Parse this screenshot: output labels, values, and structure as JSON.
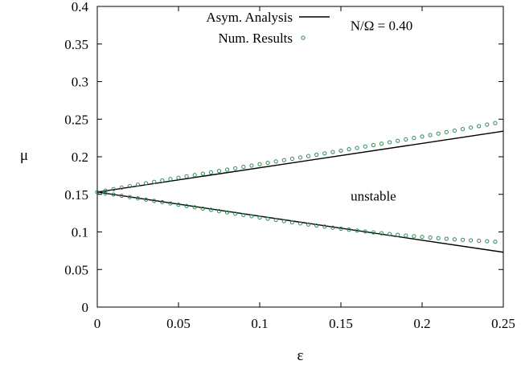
{
  "chart_data": {
    "type": "line",
    "xlabel": "ε",
    "ylabel": "μ",
    "xlim": [
      0,
      0.25
    ],
    "ylim": [
      0,
      0.4
    ],
    "x_ticks": [
      {
        "value": 0,
        "label": "0"
      },
      {
        "value": 0.05,
        "label": "0.05"
      },
      {
        "value": 0.1,
        "label": "0.1"
      },
      {
        "value": 0.15,
        "label": "0.15"
      },
      {
        "value": 0.2,
        "label": "0.2"
      },
      {
        "value": 0.25,
        "label": "0.25"
      }
    ],
    "y_ticks": [
      {
        "value": 0,
        "label": "0"
      },
      {
        "value": 0.05,
        "label": "0.05"
      },
      {
        "value": 0.1,
        "label": "0.1"
      },
      {
        "value": 0.15,
        "label": "0.15"
      },
      {
        "value": 0.2,
        "label": "0.2"
      },
      {
        "value": 0.25,
        "label": "0.25"
      },
      {
        "value": 0.3,
        "label": "0.3"
      },
      {
        "value": 0.35,
        "label": "0.35"
      },
      {
        "value": 0.4,
        "label": "0.4"
      }
    ],
    "grid": false,
    "legend_position": "top-left",
    "annotations": [
      {
        "text": "N/Ω = 0.40",
        "x": 0.175,
        "y": 0.375
      },
      {
        "text": "unstable",
        "x": 0.17,
        "y": 0.148
      }
    ],
    "series": [
      {
        "name": "Asym. Analysis",
        "style": "line",
        "color": "#000000",
        "branches": [
          {
            "x": [
              0,
              0.25
            ],
            "y": [
              0.153,
              0.234
            ]
          },
          {
            "x": [
              0,
              0.25
            ],
            "y": [
              0.153,
              0.073
            ]
          }
        ]
      },
      {
        "name": "Num. Results",
        "style": "points",
        "color": "#2e8b57",
        "branches": [
          {
            "x": [
              0,
              0.005,
              0.01,
              0.015,
              0.02,
              0.025,
              0.03,
              0.035,
              0.04,
              0.045,
              0.05,
              0.055,
              0.06,
              0.065,
              0.07,
              0.075,
              0.08,
              0.085,
              0.09,
              0.095,
              0.1,
              0.105,
              0.11,
              0.115,
              0.12,
              0.125,
              0.13,
              0.135,
              0.14,
              0.145,
              0.15,
              0.155,
              0.16,
              0.165,
              0.17,
              0.175,
              0.18,
              0.185,
              0.19,
              0.195,
              0.2,
              0.205,
              0.21,
              0.215,
              0.22,
              0.225,
              0.23,
              0.235,
              0.24,
              0.245
            ],
            "y": [
              0.153,
              0.155,
              0.157,
              0.159,
              0.1609,
              0.1628,
              0.1647,
              0.1666,
              0.1685,
              0.1703,
              0.1721,
              0.1739,
              0.1757,
              0.1775,
              0.1793,
              0.1811,
              0.1829,
              0.1847,
              0.1865,
              0.1883,
              0.1901,
              0.1919,
              0.1937,
              0.1955,
              0.1973,
              0.1991,
              0.2009,
              0.2027,
              0.2045,
              0.2063,
              0.2081,
              0.21,
              0.2118,
              0.2137,
              0.2155,
              0.2174,
              0.2193,
              0.2212,
              0.2231,
              0.225,
              0.2269,
              0.2289,
              0.2308,
              0.2328,
              0.2348,
              0.2368,
              0.2388,
              0.2408,
              0.2428,
              0.2448
            ]
          },
          {
            "x": [
              0,
              0.005,
              0.01,
              0.015,
              0.02,
              0.025,
              0.03,
              0.035,
              0.04,
              0.045,
              0.05,
              0.055,
              0.06,
              0.065,
              0.07,
              0.075,
              0.08,
              0.085,
              0.09,
              0.095,
              0.1,
              0.105,
              0.11,
              0.115,
              0.12,
              0.125,
              0.13,
              0.135,
              0.14,
              0.145,
              0.15,
              0.155,
              0.16,
              0.165,
              0.17,
              0.175,
              0.18,
              0.185,
              0.19,
              0.195,
              0.2,
              0.205,
              0.21,
              0.215,
              0.22,
              0.225,
              0.23,
              0.235,
              0.24,
              0.245
            ],
            "y": [
              0.153,
              0.1514,
              0.1498,
              0.1481,
              0.1464,
              0.1447,
              0.143,
              0.1413,
              0.1396,
              0.1379,
              0.1362,
              0.1345,
              0.1328,
              0.1311,
              0.1294,
              0.1277,
              0.126,
              0.1243,
              0.1226,
              0.1209,
              0.1192,
              0.1176,
              0.116,
              0.1144,
              0.1129,
              0.1114,
              0.1099,
              0.1085,
              0.1071,
              0.1057,
              0.1044,
              0.1031,
              0.1018,
              0.1006,
              0.0994,
              0.0983,
              0.0972,
              0.0962,
              0.0952,
              0.0943,
              0.0934,
              0.0925,
              0.0917,
              0.0909,
              0.0902,
              0.0895,
              0.0888,
              0.0882,
              0.0876,
              0.087
            ]
          }
        ]
      }
    ]
  }
}
